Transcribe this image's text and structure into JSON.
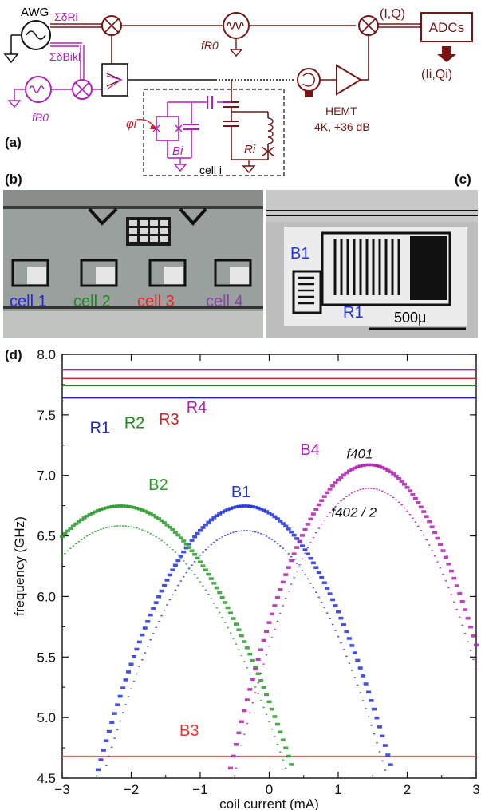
{
  "panels": {
    "a": {
      "label": "(a)",
      "awg": "AWG",
      "sum_delta_R": "ΣδRi",
      "sum_delta_B": "ΣδBikl",
      "f_R0": "fR0",
      "f_B0": "fB0",
      "IQ": "(I,Q)",
      "adcs": "ADCs",
      "IiQi": "(Ii,Qi)",
      "hemt": "HEMT",
      "hemt_spec": "4K, +36 dB",
      "phi": "φi",
      "Bi": "Bi",
      "Ri": "Ri",
      "cell": "cell i"
    },
    "b": {
      "label": "(b)",
      "cells": [
        {
          "text": "cell 1",
          "color": "#2222ee"
        },
        {
          "text": "cell 2",
          "color": "#1a8a1a"
        },
        {
          "text": "cell 3",
          "color": "#ee2222"
        },
        {
          "text": "cell 4",
          "color": "#8a40b0"
        }
      ]
    },
    "c": {
      "label": "(c)",
      "B1": "B1",
      "R1": "R1",
      "scalebar": "500μ"
    },
    "d": {
      "label": "(d)"
    }
  },
  "chart_data": {
    "type": "scatter",
    "xlabel": "coil current (mA)",
    "ylabel": "frequency (GHz)",
    "xlim": [
      -3,
      3
    ],
    "ylim": [
      4.5,
      8.0
    ],
    "x_ticks": [
      "−3",
      "−2",
      "−1",
      "0",
      "1",
      "2",
      "3"
    ],
    "y_ticks": [
      "4.5",
      "5.0",
      "5.5",
      "6.0",
      "6.5",
      "7.0",
      "7.5",
      "8.0"
    ],
    "resonators": [
      {
        "name": "R1",
        "freq": 7.64,
        "color": "#2222cc"
      },
      {
        "name": "R2",
        "freq": 7.74,
        "color": "#1a8a1a"
      },
      {
        "name": "R3",
        "freq": 7.8,
        "color": "#cc2222"
      },
      {
        "name": "R4",
        "freq": 7.87,
        "color": "#b020b8"
      }
    ],
    "series": [
      {
        "name": "B1",
        "color": "#2233dd",
        "f01_max": 6.74,
        "f02_half_max": 6.54,
        "x_peak": -0.35,
        "curvature": 0.48
      },
      {
        "name": "B2",
        "color": "#2a9a2a",
        "f01_max": 6.74,
        "f02_half_max": 6.58,
        "x_peak": -2.15,
        "curvature": 0.35
      },
      {
        "name": "B4",
        "color": "#b020b0",
        "f01_max": 7.08,
        "f02_half_max": 6.89,
        "x_peak": 1.45,
        "curvature": 0.62
      }
    ],
    "B3": {
      "name": "B3",
      "freq": 4.68,
      "color": "#ee3333"
    },
    "annotations": {
      "f4_01": "f401",
      "f4_02": "f402 / 2"
    }
  }
}
